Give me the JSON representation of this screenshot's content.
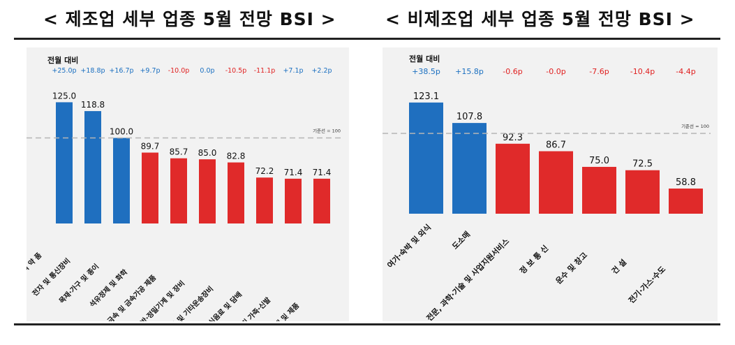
{
  "chart_data": [
    {
      "type": "bar",
      "title": "< 제조업 세부 업종 5월 전망 BSI >",
      "change_header": "전월 대비",
      "baseline_label": "기준선 = 100",
      "baseline": 100,
      "categories": [
        "의 약 품",
        "전자 및 통신장비",
        "목재·가구 및 종이",
        "석유정제 및 화학",
        "금속 및 금속가공 제품",
        "일반·정밀기계 및 장비",
        "자동차 및 기타운송장비",
        "식음료 및 담배",
        "섬유·의복 및 가죽·신발",
        "비금속 소재 및 제품"
      ],
      "values": [
        125.0,
        118.8,
        100.0,
        89.7,
        85.7,
        85.0,
        82.8,
        72.2,
        71.4,
        71.4
      ],
      "value_labels": [
        "125.0",
        "118.8",
        "100.0",
        "89.7",
        "85.7",
        "85.0",
        "82.8",
        "72.2",
        "71.4",
        "71.4"
      ],
      "changes": [
        "+25.0p",
        "+18.8p",
        "+16.7p",
        "+9.7p",
        "-10.0p",
        "0.0p",
        "-10.5p",
        "-11.1p",
        "+7.1p",
        "+2.2p"
      ],
      "change_colors": [
        "#1a6fc0",
        "#1a6fc0",
        "#1a6fc0",
        "#1a6fc0",
        "#e02020",
        "#1a6fc0",
        "#e02020",
        "#e02020",
        "#1a6fc0",
        "#1a6fc0"
      ],
      "bar_colors": [
        "#1f6fbf",
        "#1f6fbf",
        "#1f6fbf",
        "#e02a2a",
        "#e02a2a",
        "#e02a2a",
        "#e02a2a",
        "#e02a2a",
        "#e02a2a",
        "#e02a2a"
      ],
      "ylim": [
        40,
        135
      ]
    },
    {
      "type": "bar",
      "title": "< 비제조업 세부 업종 5월 전망 BSI >",
      "change_header": "전월 대비",
      "baseline_label": "기준선 = 100",
      "baseline": 100,
      "categories": [
        "여가·숙박 및 외식",
        "도소매",
        "전문, 과학·기술 및 사업지원서비스",
        "정 보 통 신",
        "운수 및 창고",
        "건 설",
        "전기·가스·수도"
      ],
      "values": [
        123.1,
        107.8,
        92.3,
        86.7,
        75.0,
        72.5,
        58.8
      ],
      "value_labels": [
        "123.1",
        "107.8",
        "92.3",
        "86.7",
        "75.0",
        "72.5",
        "58.8"
      ],
      "changes": [
        "+38.5p",
        "+15.8p",
        "-0.6p",
        "-0.0p",
        "-7.6p",
        "-10.4p",
        "-4.4p"
      ],
      "change_colors": [
        "#1a6fc0",
        "#1a6fc0",
        "#e02020",
        "#e02020",
        "#e02020",
        "#e02020",
        "#e02020"
      ],
      "bar_colors": [
        "#1f6fbf",
        "#1f6fbf",
        "#e02a2a",
        "#e02a2a",
        "#e02a2a",
        "#e02a2a",
        "#e02a2a"
      ],
      "ylim": [
        40,
        135
      ]
    }
  ]
}
